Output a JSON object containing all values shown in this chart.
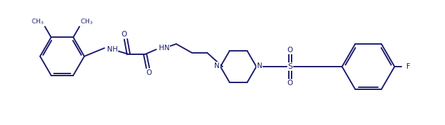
{
  "background_color": "#ffffff",
  "line_color": "#1a1a6e",
  "line_width": 1.4,
  "figsize": [
    6.44,
    1.82
  ],
  "dpi": 100,
  "xlim": [
    0,
    644
  ],
  "ylim": [
    0,
    182
  ]
}
